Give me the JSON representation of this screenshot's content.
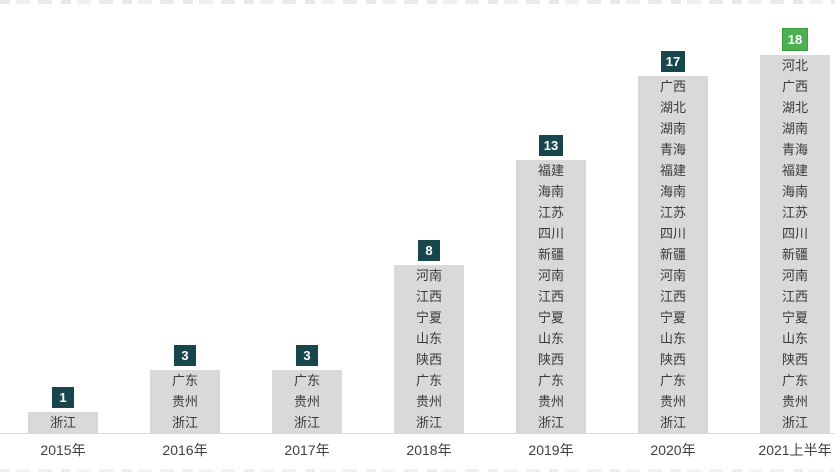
{
  "chart_data": {
    "type": "bar",
    "title": "",
    "xlabel": "",
    "ylabel": "",
    "grid": false,
    "legend": false,
    "value_labels_position": "above-bars",
    "categories": [
      "2015年",
      "2016年",
      "2017年",
      "2018年",
      "2019年",
      "2020年",
      "2021上半年"
    ],
    "values": [
      1,
      3,
      3,
      8,
      13,
      17,
      18
    ],
    "bars": [
      {
        "label": "2015年",
        "count": 1,
        "highlight": false,
        "provinces": [
          "浙江"
        ]
      },
      {
        "label": "2016年",
        "count": 3,
        "highlight": false,
        "provinces": [
          "广东",
          "贵州",
          "浙江"
        ]
      },
      {
        "label": "2017年",
        "count": 3,
        "highlight": false,
        "provinces": [
          "广东",
          "贵州",
          "浙江"
        ]
      },
      {
        "label": "2018年",
        "count": 8,
        "highlight": false,
        "provinces": [
          "河南",
          "江西",
          "宁夏",
          "山东",
          "陕西",
          "广东",
          "贵州",
          "浙江"
        ]
      },
      {
        "label": "2019年",
        "count": 13,
        "highlight": false,
        "provinces": [
          "福建",
          "海南",
          "江苏",
          "四川",
          "新疆",
          "河南",
          "江西",
          "宁夏",
          "山东",
          "陕西",
          "广东",
          "贵州",
          "浙江"
        ]
      },
      {
        "label": "2020年",
        "count": 17,
        "highlight": false,
        "provinces": [
          "广西",
          "湖北",
          "湖南",
          "青海",
          "福建",
          "海南",
          "江苏",
          "四川",
          "新疆",
          "河南",
          "江西",
          "宁夏",
          "山东",
          "陕西",
          "广东",
          "贵州",
          "浙江"
        ]
      },
      {
        "label": "2021上半年",
        "count": 18,
        "highlight": true,
        "provinces": [
          "河北",
          "广西",
          "湖北",
          "湖南",
          "青海",
          "福建",
          "海南",
          "江苏",
          "四川",
          "新疆",
          "河南",
          "江西",
          "宁夏",
          "山东",
          "陕西",
          "广东",
          "贵州",
          "浙江"
        ]
      }
    ],
    "colors": {
      "bar_fill": "#d9d9d9",
      "bar_text": "#3a3a3a",
      "badge_default": "#17474d",
      "badge_highlight": "#4cb050",
      "badge_highlight_border": "#3e9d43",
      "badge_text": "#ffffff",
      "axis_line": "#d9d9d9",
      "axis_label": "#3f3f3f"
    }
  }
}
